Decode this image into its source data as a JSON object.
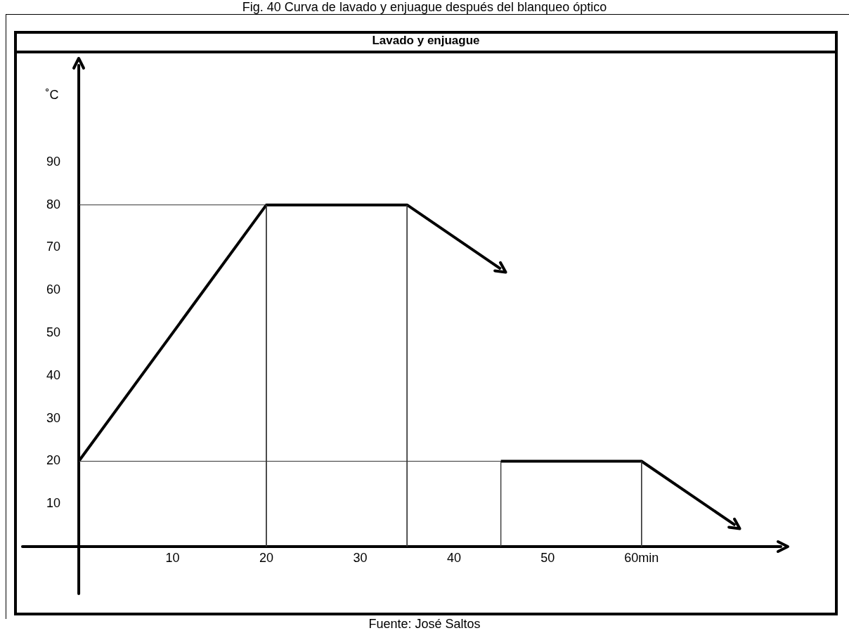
{
  "chart_data": {
    "type": "line",
    "title": "Fig. 40 Curva de lavado y enjuague después del blanqueo óptico",
    "subtitle": "Lavado y enjuague",
    "ylabel": "˚C",
    "annotations": [
      "Fuente: José Saltos"
    ],
    "xlim": [
      -6,
      75
    ],
    "ylim": [
      -11,
      113
    ],
    "xticks": [
      10,
      20,
      30,
      40,
      50,
      {
        "value": 60,
        "label": "60min"
      }
    ],
    "yticks": [
      10,
      20,
      30,
      40,
      50,
      60,
      70,
      80,
      90
    ],
    "grid": false,
    "legend": false,
    "marker": "none",
    "line_style": "solid",
    "series": [
      {
        "color": "#000000",
        "x": [
          0,
          20,
          35,
          45,
          null,
          45,
          60,
          70
        ],
        "values": [
          20,
          80,
          80,
          65,
          null,
          20,
          20,
          5
        ]
      },
      {
        "color": "#333333",
        "x": [
          0,
          20
        ],
        "values": [
          80,
          80
        ]
      },
      {
        "color": "#333333",
        "x": [
          20,
          20
        ],
        "values": [
          80,
          0
        ]
      },
      {
        "color": "#333333",
        "x": [
          35,
          35
        ],
        "values": [
          80,
          0
        ]
      },
      {
        "color": "#333333",
        "x": [
          0,
          45
        ],
        "values": [
          20,
          20
        ]
      },
      {
        "color": "#333333",
        "x": [
          45,
          45
        ],
        "values": [
          20,
          0
        ]
      },
      {
        "color": "#333333",
        "x": [
          60,
          60
        ],
        "values": [
          20,
          0
        ]
      }
    ]
  }
}
